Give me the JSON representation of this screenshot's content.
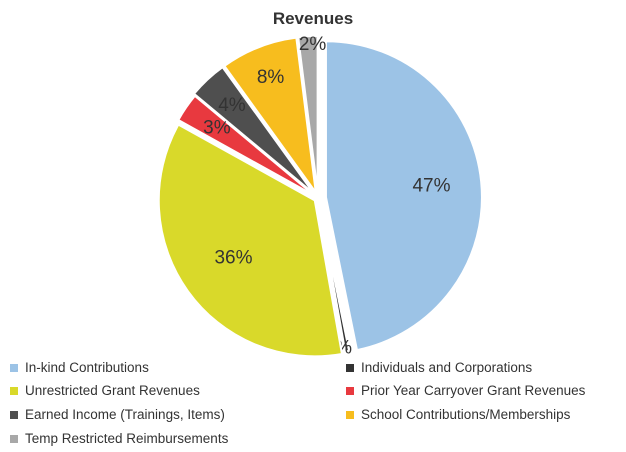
{
  "chart_data": {
    "type": "pie",
    "title": "Revenues",
    "slices": [
      {
        "name": "In-kind Contributions",
        "value": 47,
        "label": "47%",
        "color": "#9cc3e6"
      },
      {
        "name": "Individuals and Corporations",
        "value": 0.4,
        "label": "0%",
        "color": "#333333"
      },
      {
        "name": "Unrestricted Grant Revenues",
        "value": 36,
        "label": "36%",
        "color": "#d9d92a"
      },
      {
        "name": "Prior Year Carryover Grant Revenues",
        "value": 3,
        "label": "3%",
        "color": "#e8393f"
      },
      {
        "name": "Earned Income (Trainings, Items)",
        "value": 4,
        "label": "4%",
        "color": "#4f4f4f"
      },
      {
        "name": "School Contributions/Memberships",
        "value": 8,
        "label": "8%",
        "color": "#f7bd1e"
      },
      {
        "name": "Temp Restricted Reimbursements",
        "value": 2,
        "label": "2%",
        "color": "#a8a8a8"
      }
    ],
    "legend": {
      "placement": "bottom",
      "items": [
        {
          "name": "In-kind Contributions",
          "color": "#9cc3e6"
        },
        {
          "name": "Individuals and Corporations",
          "color": "#333333"
        },
        {
          "name": "Unrestricted Grant Revenues",
          "color": "#d9d92a"
        },
        {
          "name": "Prior Year Carryover Grant Revenues",
          "color": "#e8393f"
        },
        {
          "name": "Earned Income (Trainings, Items)",
          "color": "#4f4f4f"
        },
        {
          "name": "School Contributions/Memberships",
          "color": "#f7bd1e"
        },
        {
          "name": "Temp Restricted Reimbursements",
          "color": "#a8a8a8"
        }
      ]
    }
  }
}
